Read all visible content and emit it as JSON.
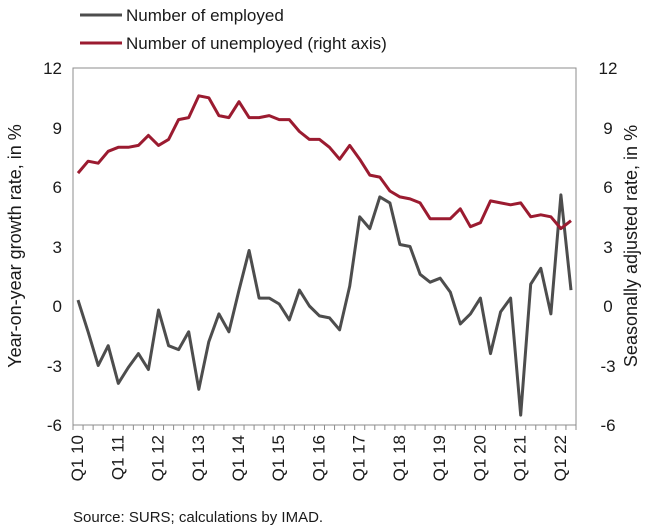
{
  "chart_data": {
    "type": "line",
    "x_tick_labels": [
      "Q1 10",
      "Q1 11",
      "Q1 12",
      "Q1 13",
      "Q1 14",
      "Q1 15",
      "Q1 16",
      "Q1 17",
      "Q1 18",
      "Q1 19",
      "Q1 20",
      "Q1 21",
      "Q1 22"
    ],
    "y_left": {
      "label": "Year-on-year growth rate, in %",
      "range": [
        -6,
        12
      ],
      "ticks": [
        "12",
        "9",
        "6",
        "3",
        "0",
        "-3",
        "-6"
      ]
    },
    "y_right": {
      "label": "Seasonally adjusted rate, in %",
      "range": [
        -6,
        12
      ],
      "ticks": [
        "12",
        "9",
        "6",
        "3",
        "0",
        "-3",
        "-6"
      ]
    },
    "grid": false,
    "legend_position": "top-left",
    "series": [
      {
        "name": "Number of employed",
        "axis": "left",
        "color": "#4d4d4d",
        "values": [
          0.3,
          -1.3,
          -3.0,
          -2.0,
          -3.9,
          -3.1,
          -2.4,
          -3.2,
          -0.2,
          -2.0,
          -2.2,
          -1.3,
          -4.2,
          -1.8,
          -0.4,
          -1.3,
          0.8,
          2.8,
          0.4,
          0.4,
          0.1,
          -0.7,
          0.8,
          0.0,
          -0.5,
          -0.6,
          -1.2,
          1.0,
          4.5,
          3.9,
          5.5,
          5.2,
          3.1,
          3.0,
          1.6,
          1.2,
          1.4,
          0.7,
          -0.9,
          -0.4,
          0.4,
          -2.4,
          -0.3,
          0.4,
          -5.5,
          1.1,
          1.9,
          -0.4,
          5.6,
          0.8
        ]
      },
      {
        "name": "Number of unemployed (right axis)",
        "axis": "right",
        "color": "#9b1b30",
        "values": [
          6.7,
          7.3,
          7.2,
          7.8,
          8.0,
          8.0,
          8.1,
          8.6,
          8.1,
          8.4,
          9.4,
          9.5,
          10.6,
          10.5,
          9.6,
          9.5,
          10.3,
          9.5,
          9.5,
          9.6,
          9.4,
          9.4,
          8.8,
          8.4,
          8.4,
          8.0,
          7.4,
          8.1,
          7.4,
          6.6,
          6.5,
          5.8,
          5.5,
          5.4,
          5.2,
          4.4,
          4.4,
          4.4,
          4.9,
          4.0,
          4.2,
          5.3,
          5.2,
          5.1,
          5.2,
          4.5,
          4.6,
          4.5,
          3.9,
          4.3
        ]
      }
    ]
  },
  "source_note": "Source: SURS; calculations by IMAD."
}
